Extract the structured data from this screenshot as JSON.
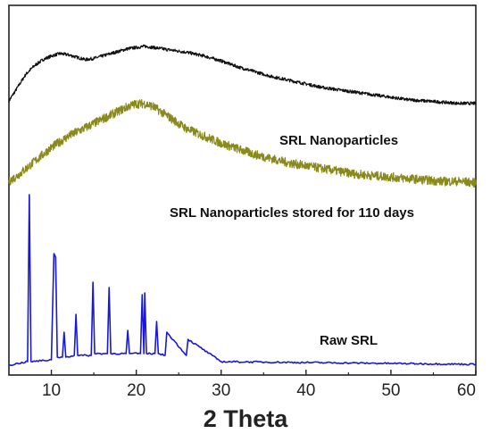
{
  "chart_data": {
    "type": "line",
    "xlabel": "2 Theta",
    "ylabel": "",
    "xlim": [
      5,
      60
    ],
    "xticks": [
      10,
      20,
      30,
      40,
      50,
      60
    ],
    "xtick_labels": [
      "10",
      "20",
      "30",
      "40",
      "50",
      "60"
    ],
    "y_axis_ticks": false,
    "series": [
      {
        "name": "SRL Nanoparticles",
        "color": "#111111",
        "x": [
          5,
          6,
          7,
          8,
          9,
          10,
          11,
          12,
          13,
          14,
          15,
          16,
          17,
          18,
          19,
          20,
          21,
          22,
          23,
          24,
          25,
          26,
          28,
          30,
          32,
          34,
          36,
          38,
          40,
          42,
          44,
          46,
          48,
          50,
          52,
          54,
          56,
          58,
          60
        ],
        "y": [
          36,
          47,
          58,
          65,
          70,
          73,
          75,
          74,
          72,
          70,
          71,
          73,
          75,
          77,
          79,
          80,
          81,
          80,
          79,
          78,
          77,
          76,
          73,
          69,
          64,
          60,
          56,
          53,
          50,
          47,
          45,
          43,
          41,
          39,
          37,
          36,
          35,
          34,
          34
        ]
      },
      {
        "name": "SRL Nanoparticles stored for 110 days",
        "color": "#8a8a1c",
        "x": [
          5,
          6,
          7,
          8,
          9,
          10,
          11,
          12,
          13,
          14,
          15,
          16,
          17,
          18,
          19,
          20,
          21,
          22,
          23,
          24,
          25,
          26,
          28,
          30,
          32,
          34,
          36,
          38,
          40,
          42,
          44,
          46,
          48,
          50,
          52,
          54,
          56,
          58,
          60
        ],
        "y": [
          5,
          9,
          14,
          19,
          24,
          29,
          33,
          37,
          40,
          43,
          46,
          49,
          52,
          55,
          58,
          60,
          60,
          58,
          54,
          50,
          46,
          42,
          37,
          32,
          28,
          24,
          21,
          18,
          16,
          14,
          12,
          10,
          9,
          8,
          7,
          6,
          5,
          5,
          4
        ]
      },
      {
        "name": "Raw SRL",
        "color": "#1818d6",
        "x": [
          5,
          7.2,
          7.4,
          7.6,
          10,
          10.3,
          10.5,
          10.7,
          11.3,
          11.5,
          11.7,
          12.7,
          12.9,
          13.1,
          14.7,
          14.9,
          15.1,
          16.6,
          16.8,
          17.0,
          18.8,
          19.0,
          19.2,
          20.5,
          20.7,
          20.9,
          21.0,
          21.2,
          22.2,
          22.4,
          22.6,
          23.4,
          23.6,
          25.9,
          26.1,
          30,
          40,
          50,
          60
        ],
        "y": [
          -1,
          3,
          190,
          3,
          5,
          124,
          120,
          8,
          8,
          36,
          8,
          10,
          56,
          10,
          10,
          92,
          12,
          12,
          86,
          12,
          12,
          38,
          12,
          12,
          78,
          12,
          80,
          12,
          12,
          48,
          12,
          10,
          36,
          10,
          28,
          3,
          2,
          1,
          0
        ]
      }
    ],
    "annotations": [
      {
        "text": "SRL Nanoparticles",
        "series": 0
      },
      {
        "text": "SRL Nanoparticles stored for 110 days",
        "series": 1
      },
      {
        "text": "Raw SRL",
        "series": 2
      }
    ]
  }
}
